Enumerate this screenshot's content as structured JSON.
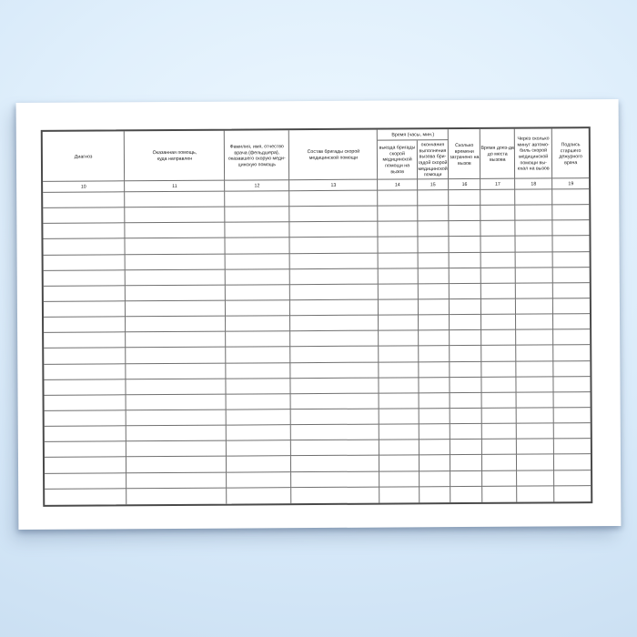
{
  "table": {
    "time_group_header": "Время (часы, мин.)",
    "columns": [
      {
        "number": "10",
        "header": "Диагноз"
      },
      {
        "number": "11",
        "header": "Оказанная помощь, куда направлен"
      },
      {
        "number": "12",
        "header": "Фамилия, имя, отчество врача (фельдшера), оказавшего скорую меди-цинскую помощь"
      },
      {
        "number": "13",
        "header": "Состав бригады скорой медицинской помощи"
      },
      {
        "number": "14",
        "header": "выезда бригады скорой медицинской помощи на вызов"
      },
      {
        "number": "15",
        "header": "окончания выполнения вызова бри-гадой скорой медицинской помощи"
      },
      {
        "number": "16",
        "header": "Сколько времени затрачено на вызов"
      },
      {
        "number": "17",
        "header": "Время доез-да до места вызова"
      },
      {
        "number": "18",
        "header": "Через сколько минут автомо-биль скорой медицинской помощи вы-ехал на вызов"
      },
      {
        "number": "19",
        "header": "Подпись старшего дежурного врача"
      }
    ],
    "data_row_count": 20,
    "data_rows_empty": true
  },
  "colors": {
    "background_top": "#eef8ff",
    "background_bottom": "#c9def1",
    "paper": "#ffffff",
    "border_outer": "#4a4a4a",
    "border_inner": "#6f6f6f",
    "text": "#1b1b1b"
  }
}
